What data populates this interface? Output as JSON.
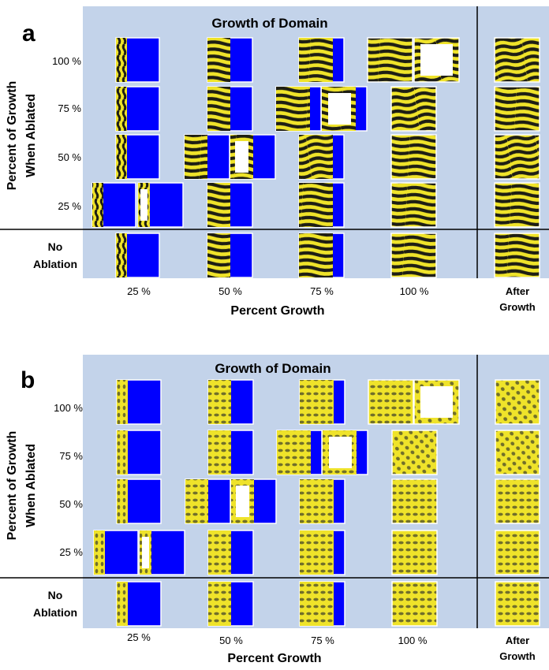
{
  "panels": [
    {
      "letter": "a",
      "title": "Growth of Domain",
      "pattern": "stripes",
      "ylabel_line1": "Percent of Growth",
      "ylabel_line2": "When Ablated",
      "xlabel": "Percent Growth",
      "after_label_line1": "After",
      "after_label_line2": "Growth",
      "no_ablation_line1": "No",
      "no_ablation_line2": "Ablation",
      "row_labels": [
        "100 %",
        "75 %",
        "50 %",
        "25 %"
      ],
      "col_labels": [
        "25 %",
        "50 %",
        "75 %",
        "100 %"
      ]
    },
    {
      "letter": "b",
      "title": "Growth of Domain",
      "pattern": "spots",
      "ylabel_line1": "Percent of Growth",
      "ylabel_line2": "When Ablated",
      "xlabel": "Percent Growth",
      "after_label_line1": "After",
      "after_label_line2": "Growth",
      "no_ablation_line1": "No",
      "no_ablation_line2": "Ablation",
      "row_labels": [
        "100 %",
        "75 %",
        "50 %",
        "25 %"
      ],
      "col_labels": [
        "25 %",
        "50 %",
        "75 %",
        "100 %"
      ]
    }
  ],
  "colors": {
    "background_panel": "#c3d3ea",
    "domain_fill": "#0000ff",
    "pattern_yellow": "#f0e42a",
    "pattern_dark": "#1e1e14",
    "ablated_region": "#ffffff",
    "tile_border": "#ffffff"
  }
}
